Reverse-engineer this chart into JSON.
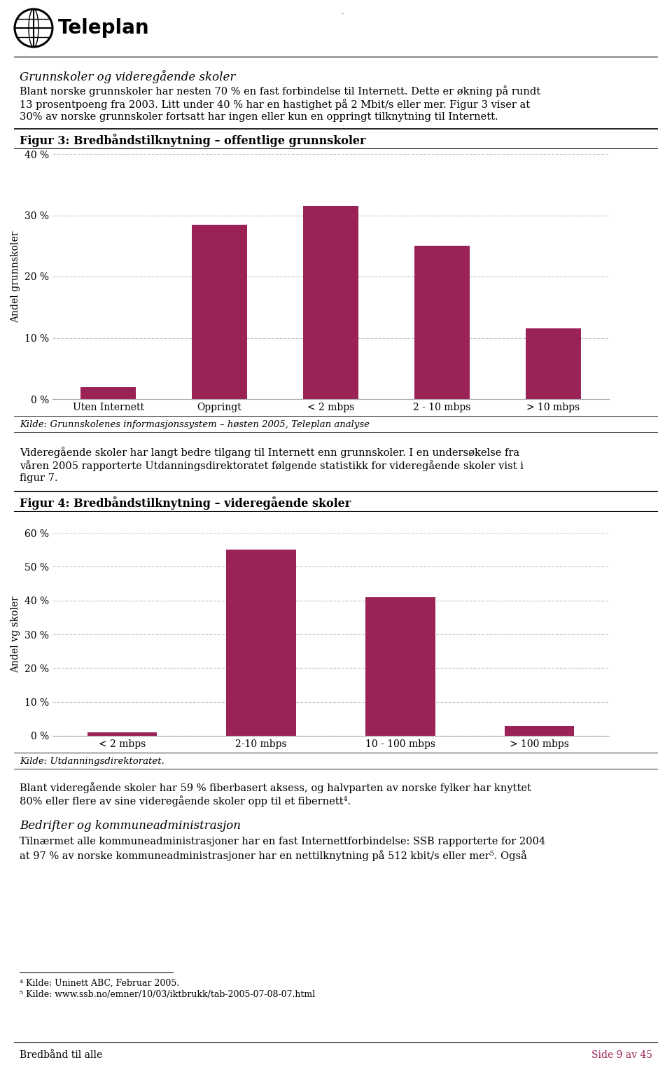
{
  "page_bg": "#ffffff",
  "fig3_title": "Figur 3: Bredbåndstilknytning – offentlige grunnskoler",
  "fig3_categories": [
    "Uten Internett",
    "Oppringt",
    "< 2 mbps",
    "2 - 10 mbps",
    "> 10 mbps"
  ],
  "fig3_values": [
    2.0,
    28.5,
    31.5,
    25.0,
    11.5
  ],
  "fig3_ylabel": "Andel grunnskoler",
  "fig3_ylim": [
    0,
    40
  ],
  "fig3_yticks": [
    0,
    10,
    20,
    30,
    40
  ],
  "fig3_ytick_labels": [
    "0 %",
    "10 %",
    "20 %",
    "30 %",
    "40 %"
  ],
  "fig3_source": "Kilde: Grunnskolenes informasjonssystem – høsten 2005, Teleplan analyse",
  "fig4_title": "Figur 4: Bredbåndstilknytning – videregående skoler",
  "fig4_categories": [
    "< 2 mbps",
    "2-10 mbps",
    "10 - 100 mbps",
    "> 100 mbps"
  ],
  "fig4_values": [
    1.0,
    55.0,
    41.0,
    3.0
  ],
  "fig4_ylabel": "Andel vg skoler",
  "fig4_ylim": [
    0,
    60
  ],
  "fig4_yticks": [
    0,
    10,
    20,
    30,
    40,
    50,
    60
  ],
  "fig4_ytick_labels": [
    "0 %",
    "10 %",
    "20 %",
    "30 %",
    "40 %",
    "50 %",
    "60 %"
  ],
  "fig4_source": "Kilde: Utdanningsdirektoratet.",
  "bar_color": "#9b2257",
  "grid_color": "#c8c8c8",
  "footer_left": "Bredbånd til alle",
  "footer_right": "Side 9 av 45",
  "footer_color": "#9b2257"
}
